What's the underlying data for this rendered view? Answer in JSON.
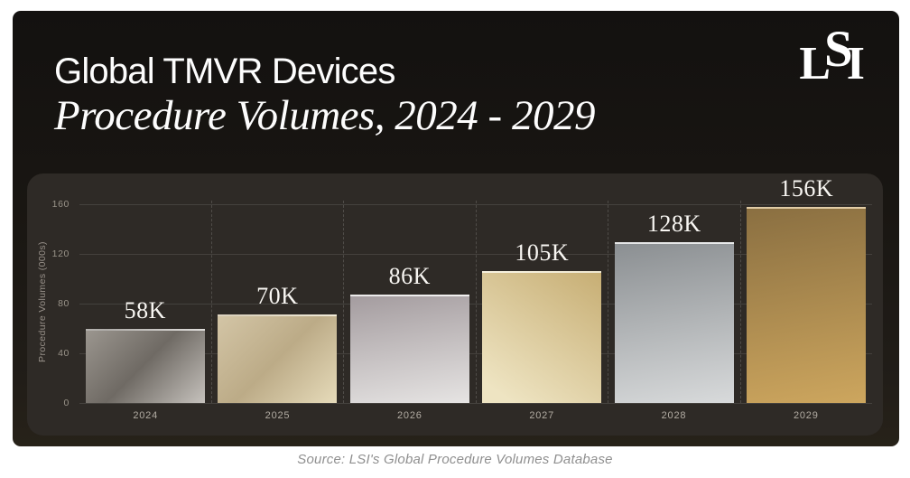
{
  "header": {
    "title_line1": "Global TMVR Devices",
    "title_line2": "Procedure Volumes, 2024 - 2029",
    "logo": {
      "letters": [
        "L",
        "S",
        "I"
      ]
    }
  },
  "chart_data": {
    "type": "bar",
    "title": "Global TMVR Devices Procedure Volumes, 2024 - 2029",
    "categories": [
      "2024",
      "2025",
      "2026",
      "2027",
      "2028",
      "2029"
    ],
    "values": [
      58,
      70,
      86,
      105,
      128,
      156
    ],
    "value_labels": [
      "58K",
      "70K",
      "86K",
      "105K",
      "128K",
      "156K"
    ],
    "ylabel": "Procedure Volumes (000s)",
    "xlabel": "",
    "yticks": [
      0,
      40,
      80,
      120,
      160
    ],
    "ylim": [
      0,
      163
    ],
    "legend_position": "none",
    "grid": {
      "horizontal": "solid",
      "vertical_separators": "dashed"
    },
    "bar_gradients": [
      {
        "angle": "135deg",
        "stops": [
          "#9b968f",
          "#6f6a64 48%",
          "#c6c2bd"
        ]
      },
      {
        "angle": "135deg",
        "stops": [
          "#d3c5a6",
          "#bcab87 50%",
          "#e6dbba"
        ]
      },
      {
        "angle": "170deg",
        "stops": [
          "#a49c9f",
          "#e6e4e3"
        ]
      },
      {
        "angle": "215deg",
        "stops": [
          "#c7ae74",
          "#eee4c2 90%"
        ]
      },
      {
        "angle": "170deg",
        "stops": [
          "#8b8f92",
          "#d8dadb"
        ]
      },
      {
        "angle": "170deg",
        "stops": [
          "#8a6f41",
          "#cda65e"
        ]
      }
    ]
  },
  "footer": {
    "source": "Source: LSI's Global Procedure Volumes Database"
  },
  "colors": {
    "page_background": "#ffffff",
    "card_background": "#191612",
    "panel_background": "#2e2a26",
    "title_text": "#fdfdfd",
    "axis_text": "#9a948a",
    "gridline": "rgba(255,255,255,0.11)",
    "value_label_text": "#f8f6f2",
    "source_text": "#8f8f8f"
  }
}
